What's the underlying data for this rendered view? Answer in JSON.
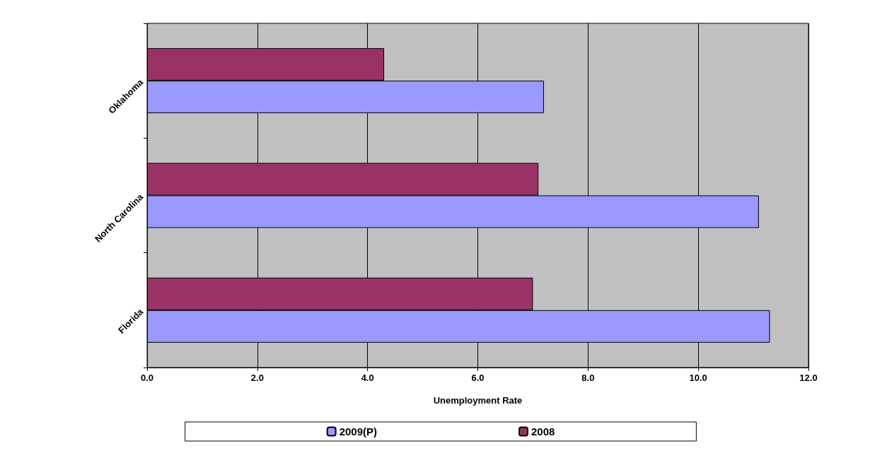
{
  "chart_data": {
    "type": "bar",
    "orientation": "horizontal",
    "xlabel": "Unemployment Rate",
    "categories": [
      "Oklahoma",
      "North Carolina",
      "Florida"
    ],
    "series": [
      {
        "name": "2009(P)",
        "color": "#9999ff",
        "values": [
          7.2,
          11.1,
          11.3
        ]
      },
      {
        "name": "2008",
        "color": "#993366",
        "values": [
          4.3,
          7.1,
          7.0
        ]
      }
    ],
    "xlim": [
      0,
      12
    ],
    "xticks": [
      {
        "value": 0,
        "label": "0.0"
      },
      {
        "value": 2,
        "label": "2.0"
      },
      {
        "value": 4,
        "label": "4.0"
      },
      {
        "value": 6,
        "label": "6.0"
      },
      {
        "value": 8,
        "label": "8.0"
      },
      {
        "value": 10,
        "label": "10.0"
      },
      {
        "value": 12,
        "label": "12.0"
      }
    ],
    "grid": "x",
    "legend": "bottom"
  }
}
